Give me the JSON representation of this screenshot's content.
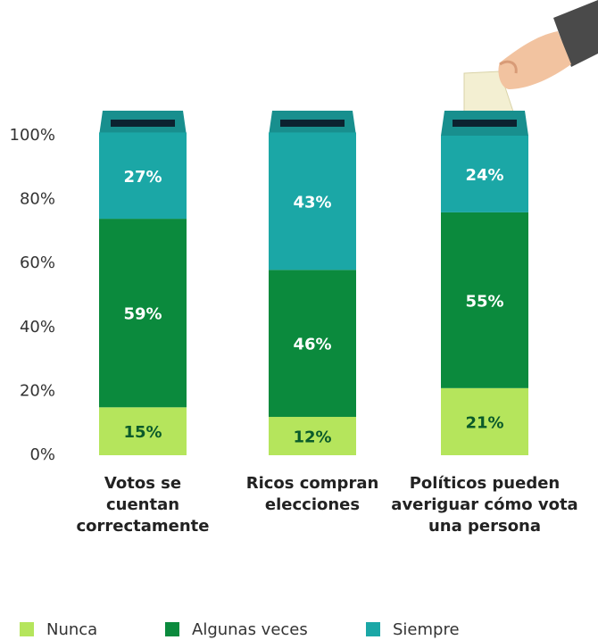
{
  "chart_data": {
    "type": "stacked_bar",
    "categories": [
      "Votos se cuentan correctamente",
      "Ricos compran elecciones",
      "Políticos pueden averiguar cómo vota una persona"
    ],
    "series": [
      {
        "name": "Nunca",
        "color": "#b5e55c",
        "values": [
          15,
          12,
          21
        ],
        "value_labels": [
          "15%",
          "12%",
          "21%"
        ]
      },
      {
        "name": "Algunas veces",
        "color": "#0b8a3d",
        "values": [
          59,
          46,
          55
        ],
        "value_labels": [
          "59%",
          "46%",
          "55%"
        ]
      },
      {
        "name": "Siempre",
        "color": "#1ba7a6",
        "values": [
          27,
          43,
          24
        ],
        "value_labels": [
          "27%",
          "43%",
          "24%"
        ]
      }
    ],
    "ylim": [
      0,
      100
    ],
    "yticks": [
      {
        "value": 0,
        "label": "0%"
      },
      {
        "value": 20,
        "label": "20%"
      },
      {
        "value": 40,
        "label": "40%"
      },
      {
        "value": 60,
        "label": "60%"
      },
      {
        "value": 80,
        "label": "80%"
      },
      {
        "value": 100,
        "label": "100%"
      }
    ],
    "legend": "bottom"
  }
}
